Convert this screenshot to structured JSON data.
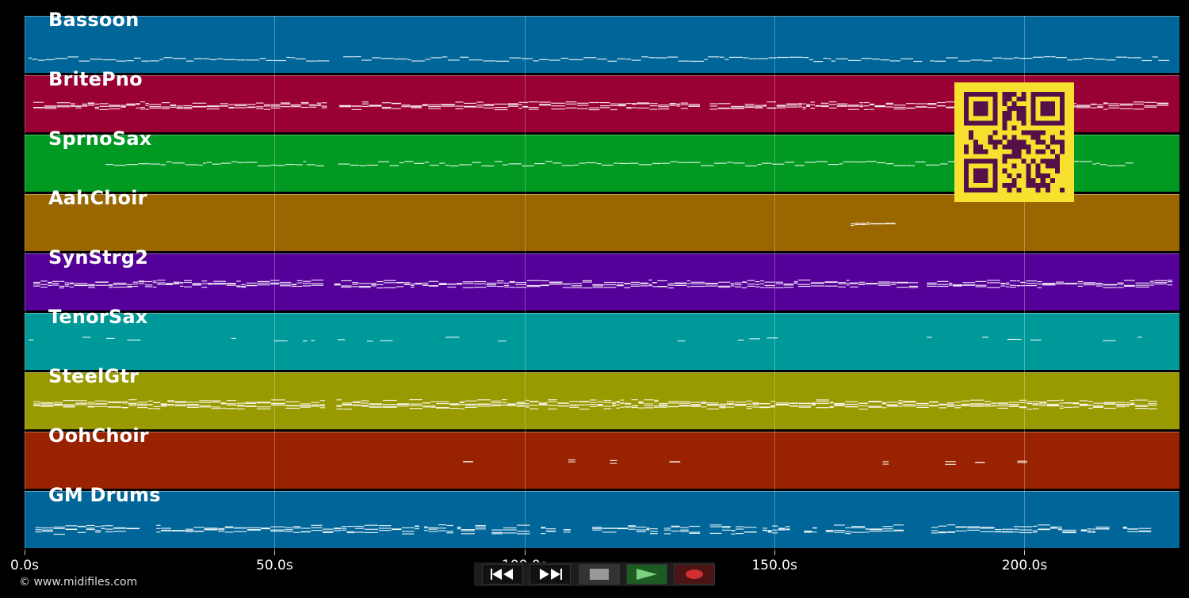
{
  "tracks": [
    {
      "name": "Bassoon",
      "color": "#006699"
    },
    {
      "name": "BritePno",
      "color": "#990033"
    },
    {
      "name": "SprnoSax",
      "color": "#009922"
    },
    {
      "name": "AahChoir",
      "color": "#996600"
    },
    {
      "name": "SynStrg2",
      "color": "#550099"
    },
    {
      "name": "TenorSax",
      "color": "#009999"
    },
    {
      "name": "SteelGtr",
      "color": "#999900"
    },
    {
      "name": "OohChoir",
      "color": "#992200"
    },
    {
      "name": "GM Drums",
      "color": "#006699"
    }
  ],
  "timeline": {
    "max_seconds": 231,
    "ticks": [
      "0.0s",
      "50.0s",
      "100.0s",
      "150.0s",
      "200.0s"
    ]
  },
  "copyright": "© www.midifiles.com",
  "qr": {
    "fg": "#55104a",
    "bg": "#f5e12e"
  },
  "transport": {
    "buttons": [
      {
        "name": "rewind-button",
        "icon": "rewind-icon"
      },
      {
        "name": "fast-forward-button",
        "icon": "fast-forward-icon"
      },
      {
        "name": "stop-button",
        "icon": "stop-icon"
      },
      {
        "name": "play-button",
        "icon": "play-icon"
      },
      {
        "name": "record-button",
        "icon": "record-icon"
      }
    ]
  }
}
